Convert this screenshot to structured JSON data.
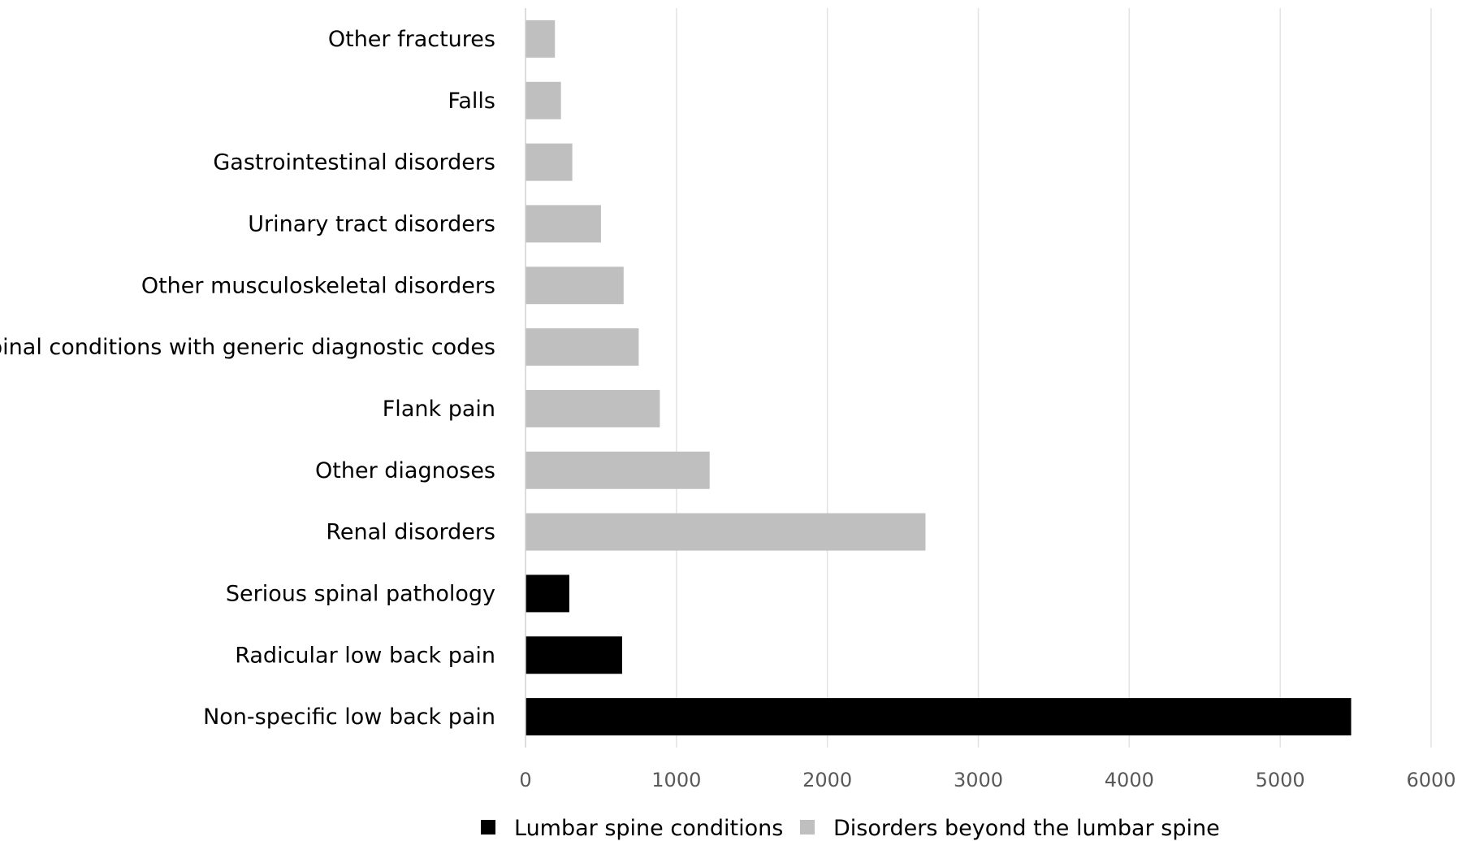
{
  "chart_data": {
    "type": "bar",
    "orientation": "horizontal",
    "categories": [
      "Other fractures",
      "Falls",
      "Gastrointestinal disorders",
      "Urinary tract disorders",
      "Other musculoskeletal disorders",
      "Spinal conditions with generic diagnostic codes",
      "Flank pain",
      "Other diagnoses",
      "Renal disorders",
      "Serious spinal pathology",
      "Radicular low back pain",
      "Non-specific low back pain"
    ],
    "values": [
      195,
      235,
      310,
      500,
      650,
      750,
      890,
      1220,
      2650,
      290,
      640,
      5470
    ],
    "series_index": [
      1,
      1,
      1,
      1,
      1,
      1,
      1,
      1,
      1,
      0,
      0,
      0
    ],
    "series": [
      {
        "name": "Lumbar spine conditions",
        "color": "#000000"
      },
      {
        "name": "Disorders beyond the lumbar spine",
        "color": "#bfbfbf"
      }
    ],
    "xlim": [
      0,
      6000
    ],
    "xticks": [
      0,
      1000,
      2000,
      3000,
      4000,
      5000,
      6000
    ],
    "xtick_labels": [
      "0",
      "1000",
      "2000",
      "3000",
      "4000",
      "5000",
      "6000"
    ],
    "title": "",
    "xlabel": "",
    "ylabel": "",
    "grid": "vertical",
    "legend_position": "bottom"
  }
}
